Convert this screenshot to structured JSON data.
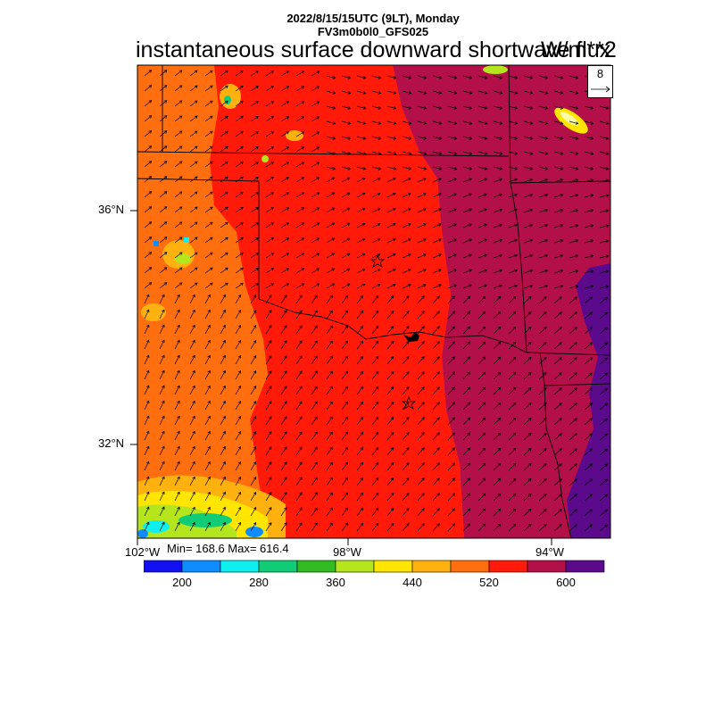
{
  "header": {
    "line1": "2022/8/15/15UTC (9LT), Monday",
    "line2": "FV3m0b0l0_GFS025",
    "title": "instantaneous surface downward shortwave flux",
    "units": "W/m**2"
  },
  "reference_vector": {
    "label": "8"
  },
  "axes": {
    "lat_labels": [
      "36°N",
      "32°N"
    ],
    "lon_labels": [
      "102°W",
      "98°W",
      "94°W"
    ]
  },
  "stats": {
    "text": "Min= 168.6 Max= 616.4"
  },
  "colorbar": {
    "colors": [
      "#1010f0",
      "#0f8cff",
      "#0fefef",
      "#11cc77",
      "#33bb22",
      "#b5e61d",
      "#ffe500",
      "#ffb20f",
      "#ff6e0f",
      "#ff1a0a",
      "#b3104a",
      "#5a0a8a"
    ],
    "labels": [
      "200",
      "280",
      "360",
      "440",
      "520",
      "600"
    ]
  },
  "colors": {
    "orange": "#ff6e0f",
    "red": "#ff1a0a",
    "crimson": "#b3104a",
    "purple": "#5a0a8a"
  }
}
